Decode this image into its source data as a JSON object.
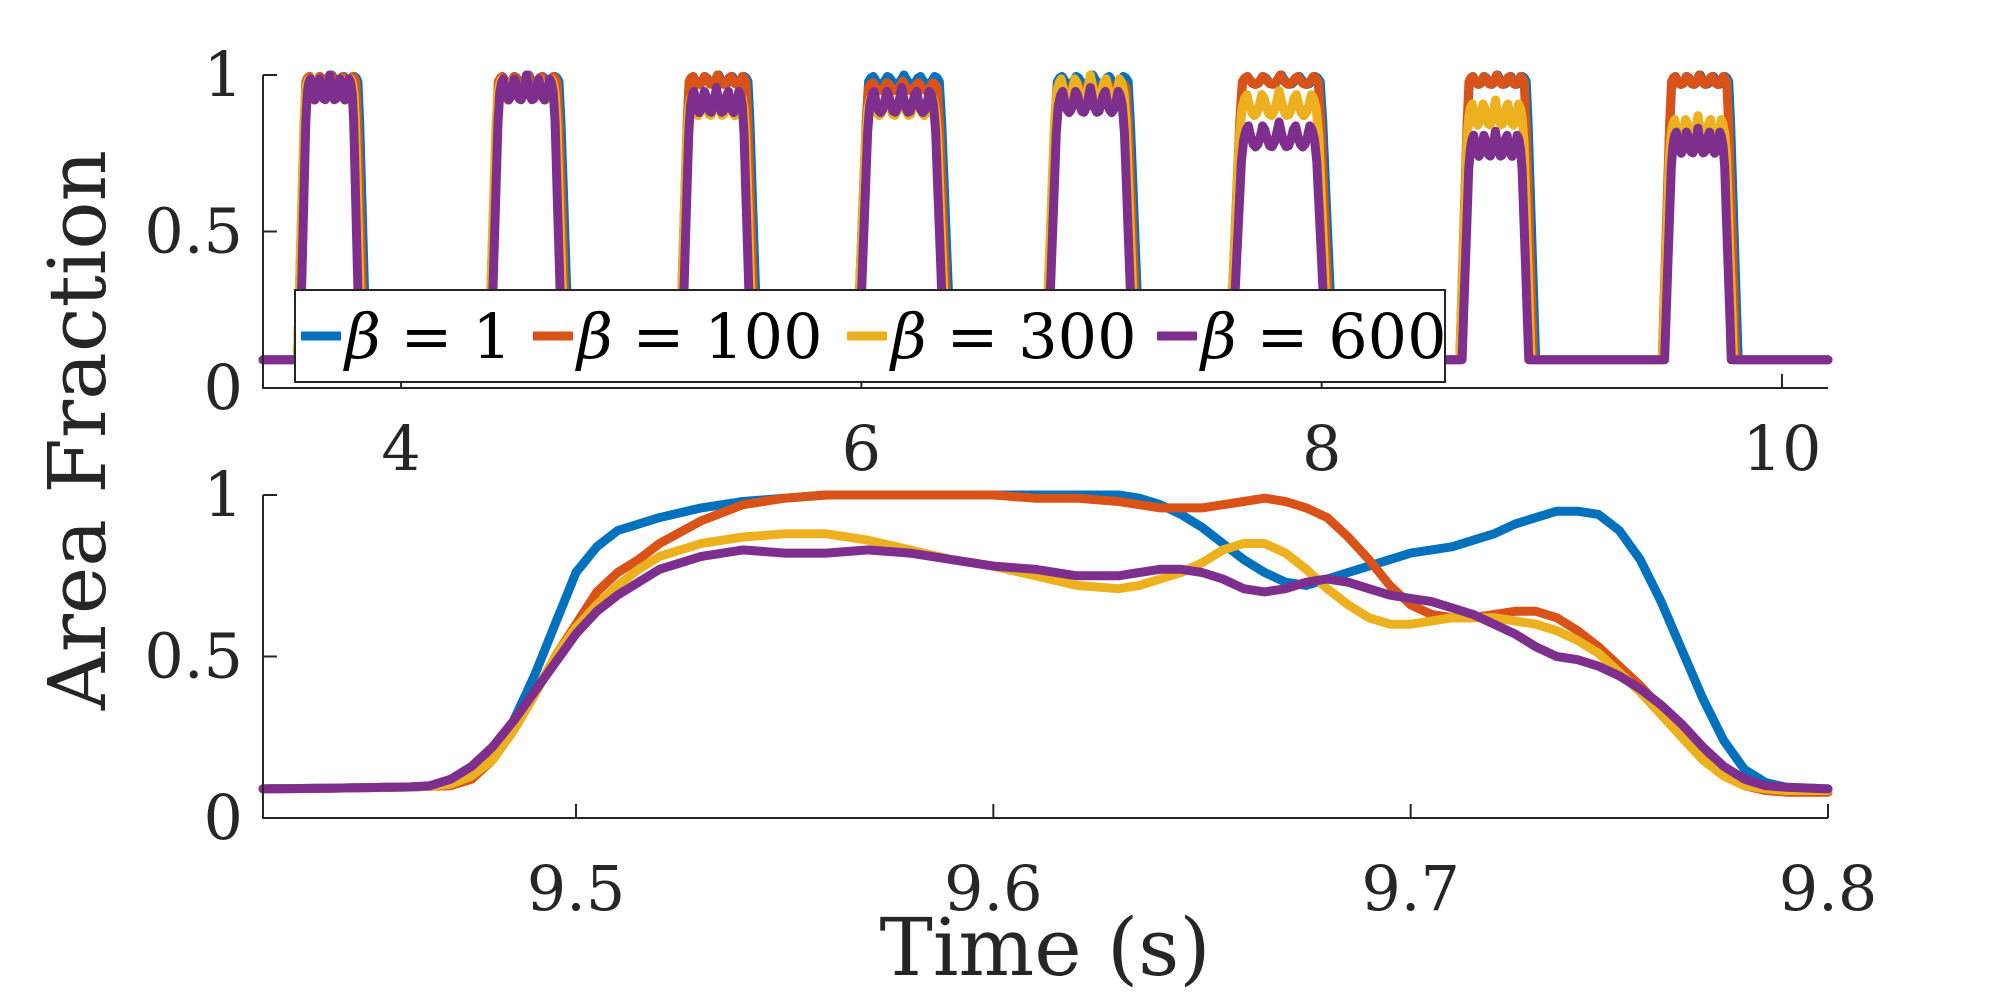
{
  "chart_data": [
    {
      "type": "line",
      "panel": "top",
      "xlim": [
        3.4,
        10.2
      ],
      "ylim": [
        0,
        1
      ],
      "xticks": [
        "4",
        "6",
        "8",
        "10"
      ],
      "yticks": [
        "0",
        "0.5",
        "1"
      ],
      "ylabel": "Area Fraction",
      "baseline": 0.09,
      "pulses": [
        {
          "start": 3.55,
          "end": 3.82
        },
        {
          "start": 4.38,
          "end": 4.7
        },
        {
          "start": 5.21,
          "end": 5.52
        },
        {
          "start": 5.98,
          "end": 6.36
        },
        {
          "start": 6.8,
          "end": 7.18
        },
        {
          "start": 7.6,
          "end": 8.02
        },
        {
          "start": 8.6,
          "end": 8.9
        },
        {
          "start": 9.48,
          "end": 9.78
        }
      ],
      "series": [
        {
          "name": "β = 1",
          "color": "#0072BD",
          "peaks": [
            1.0,
            1.0,
            1.0,
            1.0,
            1.0,
            1.0,
            1.0,
            1.0
          ]
        },
        {
          "name": "β = 100",
          "color": "#D95319",
          "peaks": [
            1.0,
            1.0,
            1.0,
            0.98,
            0.98,
            1.0,
            1.0,
            1.0
          ]
        },
        {
          "name": "β = 300",
          "color": "#EDB120",
          "peaks": [
            1.0,
            1.0,
            0.95,
            0.95,
            1.0,
            0.95,
            0.92,
            0.87
          ]
        },
        {
          "name": "β = 600",
          "color": "#7E2F8E",
          "peaks": [
            1.0,
            1.0,
            0.96,
            0.96,
            0.96,
            0.85,
            0.82,
            0.83
          ]
        }
      ],
      "legend": {
        "location": "bottom-center",
        "orientation": "horizontal",
        "entries": [
          {
            "symbol": "β",
            "rest": " = 1"
          },
          {
            "symbol": "β",
            "rest": " = 100"
          },
          {
            "symbol": "β",
            "rest": " = 300"
          },
          {
            "symbol": "β",
            "rest": " = 600"
          }
        ]
      }
    },
    {
      "type": "line",
      "panel": "bottom",
      "xlim": [
        9.425,
        9.8
      ],
      "ylim": [
        0,
        1
      ],
      "xticks": [
        "9.5",
        "9.6",
        "9.7",
        "9.8"
      ],
      "yticks": [
        "0",
        "0.5",
        "1"
      ],
      "xlabel": "Time (s)",
      "x": [
        9.425,
        9.44,
        9.45,
        9.46,
        9.465,
        9.47,
        9.475,
        9.48,
        9.485,
        9.49,
        9.495,
        9.5,
        9.505,
        9.51,
        9.515,
        9.52,
        9.53,
        9.54,
        9.55,
        9.56,
        9.57,
        9.58,
        9.59,
        9.6,
        9.61,
        9.62,
        9.63,
        9.635,
        9.64,
        9.645,
        9.65,
        9.655,
        9.66,
        9.665,
        9.67,
        9.675,
        9.68,
        9.685,
        9.69,
        9.695,
        9.7,
        9.705,
        9.71,
        9.715,
        9.72,
        9.725,
        9.73,
        9.735,
        9.74,
        9.745,
        9.75,
        9.755,
        9.76,
        9.765,
        9.77,
        9.775,
        9.78,
        9.785,
        9.79,
        9.8
      ],
      "series": [
        {
          "name": "β = 1",
          "color": "#0072BD",
          "values": [
            0.09,
            0.092,
            0.094,
            0.096,
            0.098,
            0.105,
            0.14,
            0.2,
            0.3,
            0.44,
            0.6,
            0.76,
            0.84,
            0.89,
            0.91,
            0.93,
            0.96,
            0.98,
            0.99,
            1.0,
            1.0,
            1.0,
            1.0,
            1.0,
            1.0,
            1.0,
            1.0,
            0.99,
            0.97,
            0.94,
            0.9,
            0.85,
            0.8,
            0.76,
            0.73,
            0.72,
            0.74,
            0.76,
            0.78,
            0.8,
            0.82,
            0.83,
            0.84,
            0.86,
            0.88,
            0.91,
            0.93,
            0.95,
            0.95,
            0.94,
            0.89,
            0.8,
            0.67,
            0.52,
            0.37,
            0.24,
            0.15,
            0.11,
            0.095,
            0.09
          ]
        },
        {
          "name": "β = 100",
          "color": "#D95319",
          "values": [
            0.09,
            0.092,
            0.094,
            0.096,
            0.098,
            0.1,
            0.12,
            0.18,
            0.27,
            0.38,
            0.5,
            0.6,
            0.7,
            0.76,
            0.8,
            0.85,
            0.92,
            0.97,
            0.99,
            1.0,
            1.0,
            1.0,
            1.0,
            1.0,
            0.99,
            0.99,
            0.98,
            0.97,
            0.96,
            0.96,
            0.96,
            0.97,
            0.98,
            0.99,
            0.98,
            0.96,
            0.93,
            0.87,
            0.8,
            0.72,
            0.66,
            0.63,
            0.62,
            0.62,
            0.63,
            0.64,
            0.64,
            0.62,
            0.58,
            0.53,
            0.47,
            0.41,
            0.34,
            0.27,
            0.2,
            0.14,
            0.1,
            0.085,
            0.08,
            0.08
          ]
        },
        {
          "name": "β = 300",
          "color": "#EDB120",
          "values": [
            0.09,
            0.092,
            0.094,
            0.096,
            0.098,
            0.105,
            0.13,
            0.18,
            0.27,
            0.38,
            0.5,
            0.59,
            0.66,
            0.72,
            0.77,
            0.81,
            0.85,
            0.87,
            0.88,
            0.88,
            0.86,
            0.83,
            0.8,
            0.78,
            0.75,
            0.72,
            0.71,
            0.72,
            0.74,
            0.76,
            0.79,
            0.83,
            0.85,
            0.85,
            0.82,
            0.77,
            0.71,
            0.66,
            0.62,
            0.6,
            0.6,
            0.61,
            0.62,
            0.62,
            0.62,
            0.61,
            0.6,
            0.58,
            0.55,
            0.51,
            0.45,
            0.39,
            0.32,
            0.25,
            0.18,
            0.13,
            0.1,
            0.09,
            0.085,
            0.085
          ]
        },
        {
          "name": "β = 600",
          "color": "#7E2F8E",
          "values": [
            0.09,
            0.092,
            0.094,
            0.096,
            0.1,
            0.12,
            0.16,
            0.22,
            0.3,
            0.39,
            0.48,
            0.57,
            0.64,
            0.69,
            0.73,
            0.77,
            0.81,
            0.83,
            0.82,
            0.82,
            0.83,
            0.82,
            0.8,
            0.78,
            0.77,
            0.75,
            0.75,
            0.76,
            0.77,
            0.77,
            0.76,
            0.74,
            0.71,
            0.7,
            0.71,
            0.73,
            0.74,
            0.73,
            0.71,
            0.69,
            0.68,
            0.67,
            0.65,
            0.63,
            0.6,
            0.57,
            0.53,
            0.5,
            0.49,
            0.47,
            0.44,
            0.4,
            0.35,
            0.29,
            0.22,
            0.16,
            0.12,
            0.1,
            0.095,
            0.09
          ]
        }
      ]
    }
  ]
}
